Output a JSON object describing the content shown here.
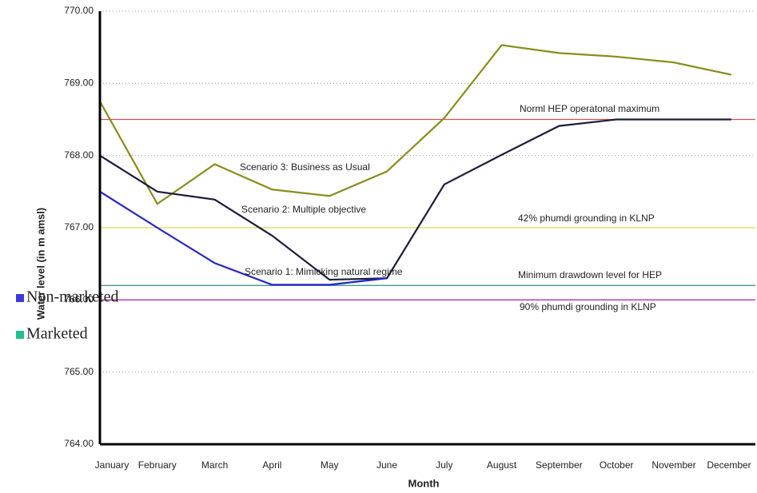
{
  "chart_data": {
    "type": "line",
    "x_label": "Month",
    "y_label": "Water level (in m amsl)",
    "categories": [
      "January",
      "February",
      "March",
      "April",
      "May",
      "June",
      "July",
      "August",
      "September",
      "October",
      "November",
      "December"
    ],
    "series": [
      {
        "name": "Scenario 3: Business as Usual",
        "color": "#8a8c1e",
        "values": [
          768.75,
          767.33,
          767.88,
          767.53,
          767.44,
          767.78,
          768.52,
          769.53,
          769.42,
          769.37,
          769.29,
          769.12
        ]
      },
      {
        "name": "Scenario 2: Multiple objective",
        "color": "#1c1c3c",
        "values": [
          768.0,
          767.5,
          767.39,
          766.89,
          766.28,
          766.3,
          767.6,
          768.01,
          768.41,
          768.5,
          768.5,
          768.5
        ]
      },
      {
        "name": "Scenario 1: Mimicking natural regime",
        "color": "#2424c8",
        "values": [
          767.5,
          767.0,
          766.51,
          766.21,
          766.21,
          766.3,
          null,
          null,
          null,
          null,
          null,
          null
        ]
      }
    ],
    "reference_lines": [
      {
        "label": "Norml HEP operatonal maximum",
        "value": 768.5,
        "color": "#d05050"
      },
      {
        "label": "42% phumdi grounding in KLNP",
        "value": 767.0,
        "color": "#e8d84a"
      },
      {
        "label": "Minimum drawdown level for HEP",
        "value": 766.2,
        "color": "#2e8b8b"
      },
      {
        "label": "90% phumdi grounding in KLNP",
        "value": 766.0,
        "color": "#b030b0"
      }
    ],
    "legend": [
      {
        "name": "Non-marketed",
        "color": "#3a3ad8"
      },
      {
        "name": "Marketed",
        "color": "#20c090"
      }
    ],
    "ylim": [
      764,
      770
    ],
    "yticks": [
      {
        "value": 764,
        "label": "764.00"
      },
      {
        "value": 765,
        "label": "765.00"
      },
      {
        "value": 766,
        "label": "766.00"
      },
      {
        "value": 767,
        "label": "767.00"
      },
      {
        "value": 768,
        "label": "768.00"
      },
      {
        "value": 769,
        "label": "769.00"
      },
      {
        "value": 770,
        "label": "770.00"
      }
    ],
    "grid": true
  }
}
